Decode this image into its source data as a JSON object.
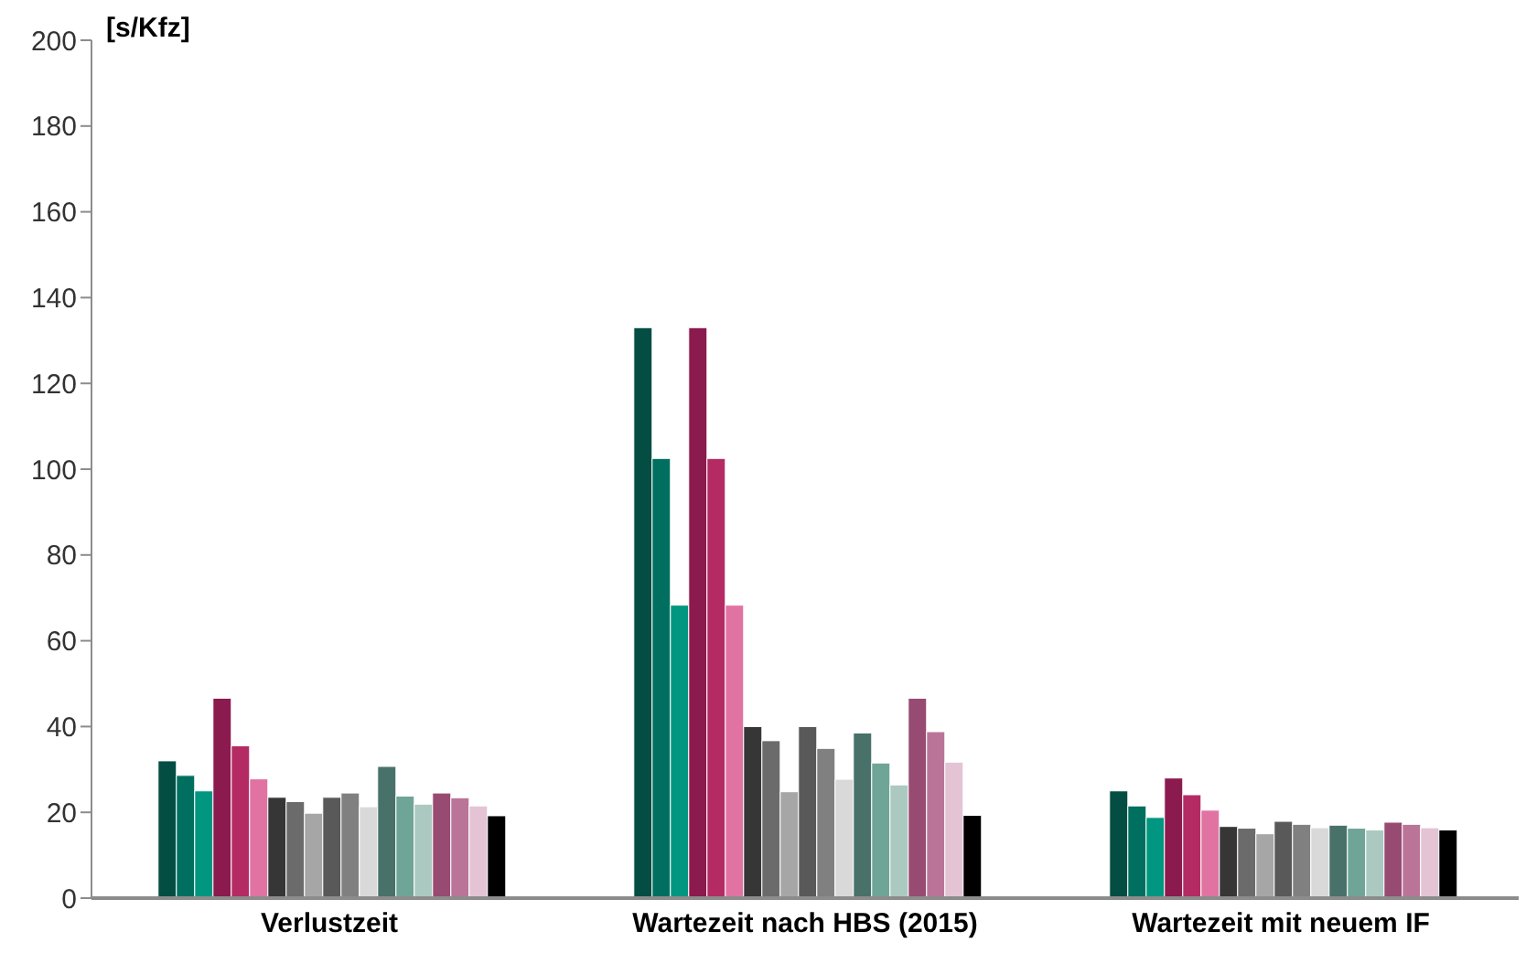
{
  "chart_data": {
    "type": "bar",
    "ylabel": "[s/Kfz]",
    "categories": [
      "Verlustzeit",
      "Wartezeit nach HBS (2015)",
      "Wartezeit mit neuem IF"
    ],
    "ylim": [
      0,
      200
    ],
    "yticks": [
      0,
      20,
      40,
      60,
      80,
      100,
      120,
      140,
      160,
      180,
      200
    ],
    "series": [
      {
        "color": "#034d42",
        "values": [
          32,
          133,
          25
        ]
      },
      {
        "color": "#006f5f",
        "values": [
          28.6,
          102.5,
          21.5
        ]
      },
      {
        "color": "#00967f",
        "values": [
          25,
          68.3,
          18.8
        ]
      },
      {
        "color": "#8b1a4e",
        "values": [
          46.6,
          133,
          28
        ]
      },
      {
        "color": "#b42b64",
        "values": [
          35.5,
          102.5,
          24.1
        ]
      },
      {
        "color": "#e173a2",
        "values": [
          27.8,
          68.3,
          20.5
        ]
      },
      {
        "color": "#363636",
        "values": [
          23.5,
          40,
          16.7
        ]
      },
      {
        "color": "#6b6b6b",
        "values": [
          22.5,
          36.7,
          16.3
        ]
      },
      {
        "color": "#a6a6a6",
        "values": [
          19.8,
          24.8,
          15
        ]
      },
      {
        "color": "#595959",
        "values": [
          23.5,
          40,
          17.9
        ]
      },
      {
        "color": "#808080",
        "values": [
          24.5,
          34.9,
          17.2
        ]
      },
      {
        "color": "#d9d9d9",
        "values": [
          21.3,
          27.7,
          16.4
        ]
      },
      {
        "color": "#48716a",
        "values": [
          30.7,
          38.5,
          17
        ]
      },
      {
        "color": "#6fa597",
        "values": [
          23.8,
          31.5,
          16.3
        ]
      },
      {
        "color": "#abc9c1",
        "values": [
          21.9,
          26.4,
          15.9
        ]
      },
      {
        "color": "#974b72",
        "values": [
          24.5,
          46.6,
          17.7
        ]
      },
      {
        "color": "#ba7498",
        "values": [
          23.4,
          38.8,
          17.2
        ]
      },
      {
        "color": "#e4c3d4",
        "values": [
          21.5,
          31.7,
          16.4
        ]
      },
      {
        "color": "#000000",
        "values": [
          19.2,
          19.3,
          15.9
        ]
      }
    ]
  }
}
